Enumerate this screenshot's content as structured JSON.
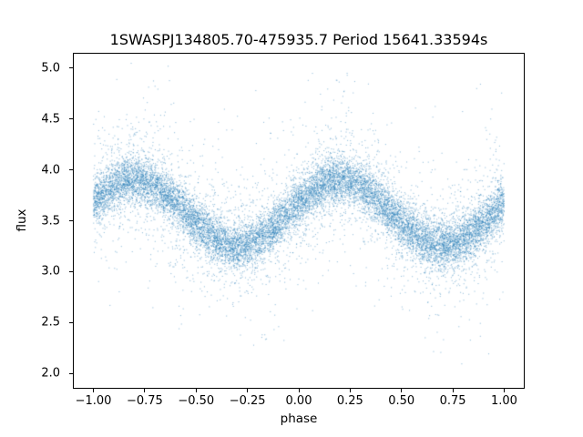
{
  "chart_data": {
    "type": "scatter",
    "title": "1SWASPJ134805.70-475935.7 Period 15641.33594s",
    "xlabel": "phase",
    "ylabel": "flux",
    "xlim": [
      -1.1,
      1.1
    ],
    "ylim": [
      1.85,
      5.15
    ],
    "x_data_range": [
      -1.0,
      1.0
    ],
    "xticks": [
      {
        "v": -1.0,
        "label": "−1.00"
      },
      {
        "v": -0.75,
        "label": "−0.75"
      },
      {
        "v": -0.5,
        "label": "−0.50"
      },
      {
        "v": -0.25,
        "label": "−0.25"
      },
      {
        "v": 0.0,
        "label": "0.00"
      },
      {
        "v": 0.25,
        "label": "0.25"
      },
      {
        "v": 0.5,
        "label": "0.50"
      },
      {
        "v": 0.75,
        "label": "0.75"
      },
      {
        "v": 1.0,
        "label": "1.00"
      }
    ],
    "yticks": [
      {
        "v": 2.0,
        "label": "2.0"
      },
      {
        "v": 2.5,
        "label": "2.5"
      },
      {
        "v": 3.0,
        "label": "3.0"
      },
      {
        "v": 3.5,
        "label": "3.5"
      },
      {
        "v": 4.0,
        "label": "4.0"
      },
      {
        "v": 4.5,
        "label": "4.5"
      },
      {
        "v": 5.0,
        "label": "5.0"
      }
    ],
    "point_color": "#1f77b4",
    "point_alpha": 0.45,
    "n_points": 16000,
    "model": {
      "kind": "cosine",
      "mean": 3.58,
      "amplitude": 0.32,
      "peak_phase": 0.2,
      "period": 1.0
    },
    "noise": {
      "components": [
        {
          "weight": 0.74,
          "sigma": 0.11
        },
        {
          "weight": 0.2,
          "sigma": 0.26
        },
        {
          "weight": 0.06,
          "sigma": 0.55
        }
      ],
      "clip": [
        1.95,
        5.05
      ]
    },
    "grid": false,
    "legend": null
  }
}
